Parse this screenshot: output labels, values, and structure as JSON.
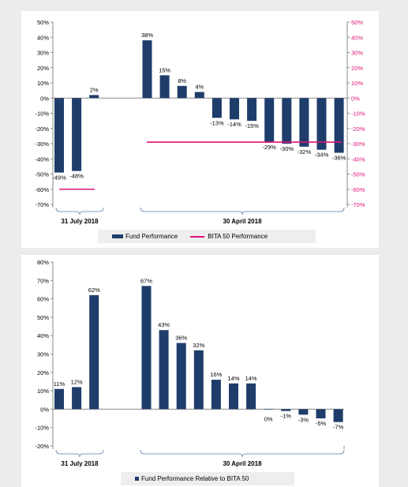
{
  "colors": {
    "bar": "#1f3d6b",
    "line": "#e0137a",
    "axis": "#8a8a8a",
    "right_axis_label": "#e0137a",
    "bracket": "#5a7fb0"
  },
  "chart_data": [
    {
      "type": "bar",
      "yticks": [
        "50%",
        "40%",
        "30%",
        "20%",
        "10%",
        "0%",
        "-10%",
        "-20%",
        "-30%",
        "-40%",
        "-50%",
        "-60%",
        "-70%"
      ],
      "yticks_right": [
        "50%",
        "40%",
        "30%",
        "20%",
        "10%",
        "0%",
        "-10%",
        "-20%",
        "-30%",
        "-40%",
        "-50%",
        "-60%",
        "-70%"
      ],
      "ylim": [
        -70,
        50
      ],
      "grid": false,
      "legend_position": "bottom",
      "groups": [
        {
          "label": "31 July 2018"
        },
        {
          "label": "30 April 2018"
        }
      ],
      "bars": [
        {
          "group": 0,
          "value": -49,
          "label": "-49%"
        },
        {
          "group": 0,
          "value": -48,
          "label": "-48%"
        },
        {
          "group": 0,
          "value": 2,
          "label": "2%"
        },
        {
          "group": 1,
          "value": 38,
          "label": "38%"
        },
        {
          "group": 1,
          "value": 15,
          "label": "15%"
        },
        {
          "group": 1,
          "value": 8,
          "label": "8%"
        },
        {
          "group": 1,
          "value": 4,
          "label": "4%"
        },
        {
          "group": 1,
          "value": -13,
          "label": "-13%"
        },
        {
          "group": 1,
          "value": -14,
          "label": "-14%"
        },
        {
          "group": 1,
          "value": -15,
          "label": "-15%"
        },
        {
          "group": 1,
          "value": -29,
          "label": "-29%"
        },
        {
          "group": 1,
          "value": -30,
          "label": "-30%"
        },
        {
          "group": 1,
          "value": -32,
          "label": "-32%"
        },
        {
          "group": 1,
          "value": -34,
          "label": "-34%"
        },
        {
          "group": 1,
          "value": -36,
          "label": "-36%"
        }
      ],
      "reference_lines": [
        {
          "series": 1,
          "group": 0,
          "value": -60
        },
        {
          "series": 1,
          "group": 1,
          "value": -29
        }
      ],
      "series": [
        {
          "name": "Fund Performance",
          "kind": "bar"
        },
        {
          "name": "BITA 50 Performance",
          "kind": "line"
        }
      ]
    },
    {
      "type": "bar",
      "yticks": [
        "80%",
        "70%",
        "60%",
        "50%",
        "40%",
        "30%",
        "20%",
        "10%",
        "0%",
        "-10%",
        "-20%"
      ],
      "ylim": [
        -20,
        80
      ],
      "grid": false,
      "legend_position": "bottom",
      "groups": [
        {
          "label": "31 July 2018"
        },
        {
          "label": "30 April 2018"
        }
      ],
      "bars": [
        {
          "group": 0,
          "value": 11,
          "label": "11%"
        },
        {
          "group": 0,
          "value": 12,
          "label": "12%"
        },
        {
          "group": 0,
          "value": 62,
          "label": "62%"
        },
        {
          "group": 1,
          "value": 67,
          "label": "67%"
        },
        {
          "group": 1,
          "value": 43,
          "label": "43%"
        },
        {
          "group": 1,
          "value": 36,
          "label": "36%"
        },
        {
          "group": 1,
          "value": 32,
          "label": "32%"
        },
        {
          "group": 1,
          "value": 16,
          "label": "16%"
        },
        {
          "group": 1,
          "value": 14,
          "label": "14%"
        },
        {
          "group": 1,
          "value": 14,
          "label": "14%"
        },
        {
          "group": 1,
          "value": 0,
          "label": "0%"
        },
        {
          "group": 1,
          "value": -1,
          "label": "-1%"
        },
        {
          "group": 1,
          "value": -3,
          "label": "-3%"
        },
        {
          "group": 1,
          "value": -5,
          "label": "-5%"
        },
        {
          "group": 1,
          "value": -7,
          "label": "-7%"
        }
      ],
      "series": [
        {
          "name": "Fund Performance Relative to BITA 50",
          "kind": "bar"
        }
      ]
    }
  ]
}
